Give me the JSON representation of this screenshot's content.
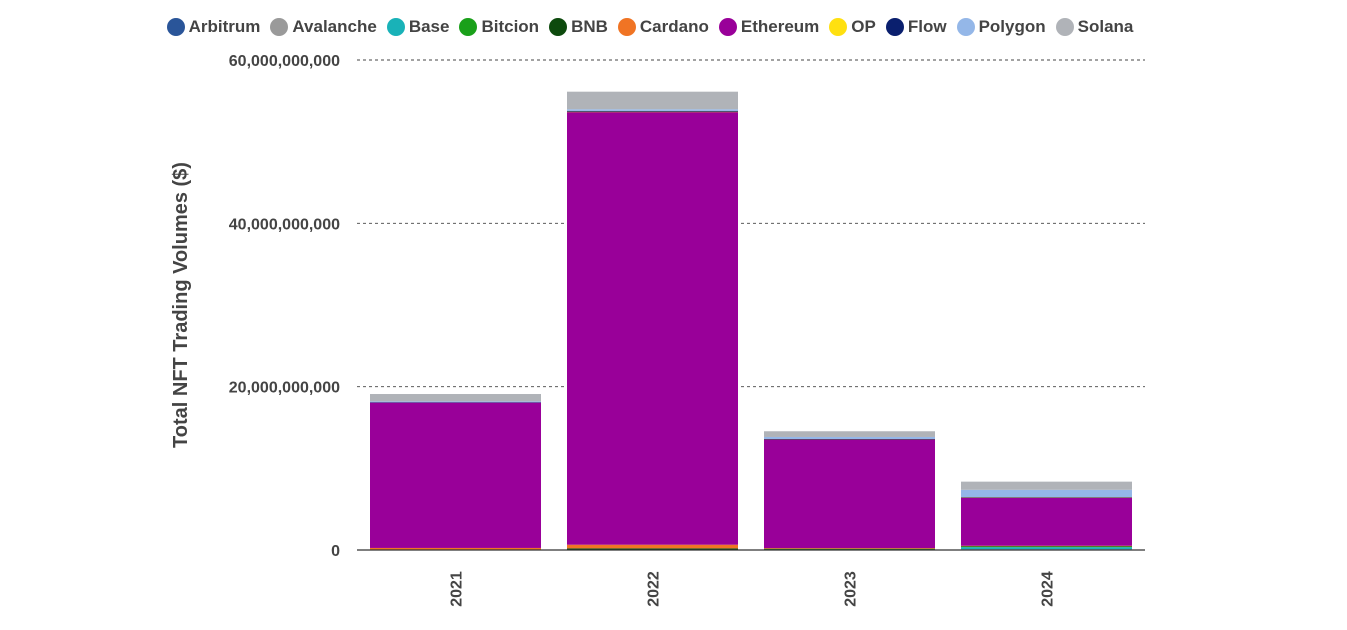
{
  "chart_data": {
    "type": "bar",
    "stacked": true,
    "title": "",
    "xlabel": "",
    "ylabel": "Total NFT Trading Volumes ($)",
    "ylim": [
      0,
      60000000000
    ],
    "yticks": [
      0,
      20000000000,
      40000000000,
      60000000000
    ],
    "ytick_labels": [
      "0",
      "20,000,000,000",
      "40,000,000,000",
      "60,000,000,000"
    ],
    "grid": "horizontal-dashed",
    "legend_position": "top-center",
    "categories": [
      "2021",
      "2022",
      "2023",
      "2024"
    ],
    "series": [
      {
        "name": "Arbitrum",
        "color": "#2a5599",
        "values": [
          0,
          30000000,
          60000000,
          80000000
        ]
      },
      {
        "name": "Avalanche",
        "color": "#9a9a9a",
        "values": [
          0,
          20000000,
          10000000,
          20000000
        ]
      },
      {
        "name": "Base",
        "color": "#19b2b8",
        "values": [
          0,
          0,
          20000000,
          250000000
        ]
      },
      {
        "name": "Bitcion",
        "color": "#1aa01a",
        "values": [
          0,
          0,
          40000000,
          100000000
        ]
      },
      {
        "name": "BNB",
        "color": "#0d4a0d",
        "values": [
          50000000,
          150000000,
          30000000,
          30000000
        ]
      },
      {
        "name": "Cardano",
        "color": "#f07424",
        "values": [
          200000000,
          450000000,
          80000000,
          40000000
        ]
      },
      {
        "name": "Ethereum",
        "color": "#990099",
        "values": [
          17800000000,
          53000000000,
          13300000000,
          5900000000
        ]
      },
      {
        "name": "OP",
        "color": "#ffe010",
        "values": [
          0,
          20000000,
          30000000,
          30000000
        ]
      },
      {
        "name": "Flow",
        "color": "#0a1f6e",
        "values": [
          50000000,
          100000000,
          20000000,
          20000000
        ]
      },
      {
        "name": "Polygon",
        "color": "#94b7e8",
        "values": [
          100000000,
          200000000,
          250000000,
          900000000
        ]
      },
      {
        "name": "Solana",
        "color": "#b0b3b8",
        "values": [
          900000000,
          2150000000,
          700000000,
          1000000000
        ]
      }
    ]
  }
}
